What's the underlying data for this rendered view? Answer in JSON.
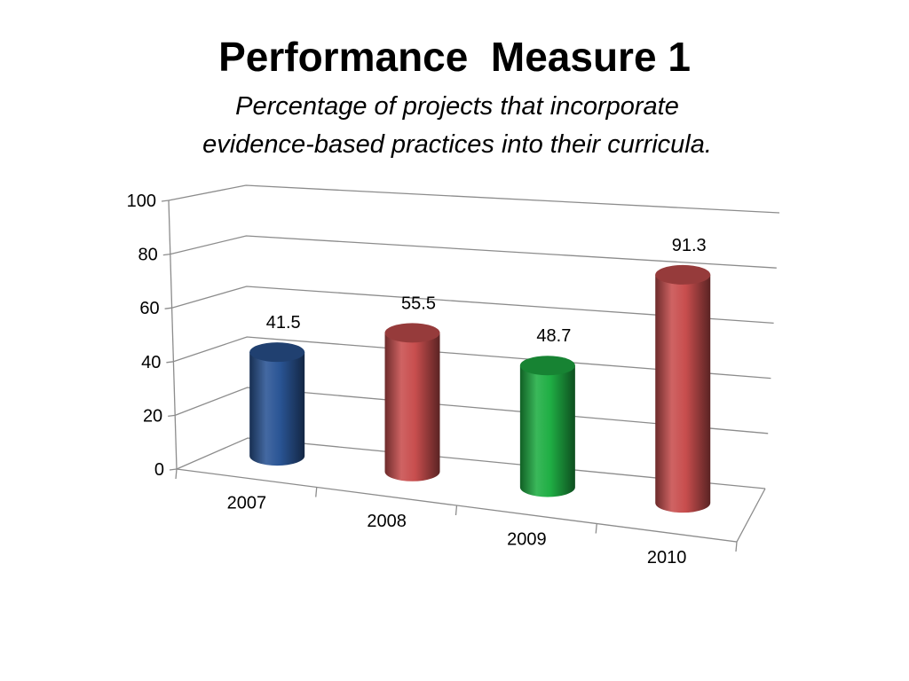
{
  "slide": {
    "title": "Performance  Measure 1",
    "subtitle_line1": "Percentage of projects that incorporate",
    "subtitle_line2": "evidence-based practices into their curricula."
  },
  "chart_data": {
    "type": "bar",
    "style": "3d-cylinder",
    "categories": [
      "2007",
      "2008",
      "2009",
      "2010"
    ],
    "values": [
      41.5,
      55.5,
      48.7,
      91.3
    ],
    "data_labels": [
      "41.5",
      "55.5",
      "48.7",
      "91.3"
    ],
    "bar_colors": [
      "#2a5595",
      "#c84e4e",
      "#1fae44",
      "#c84e4e"
    ],
    "ylim": [
      0,
      100
    ],
    "yticks": [
      "0",
      "20",
      "40",
      "60",
      "80",
      "100"
    ],
    "grid": true,
    "legend": "none",
    "xlabel": "",
    "ylabel": ""
  }
}
